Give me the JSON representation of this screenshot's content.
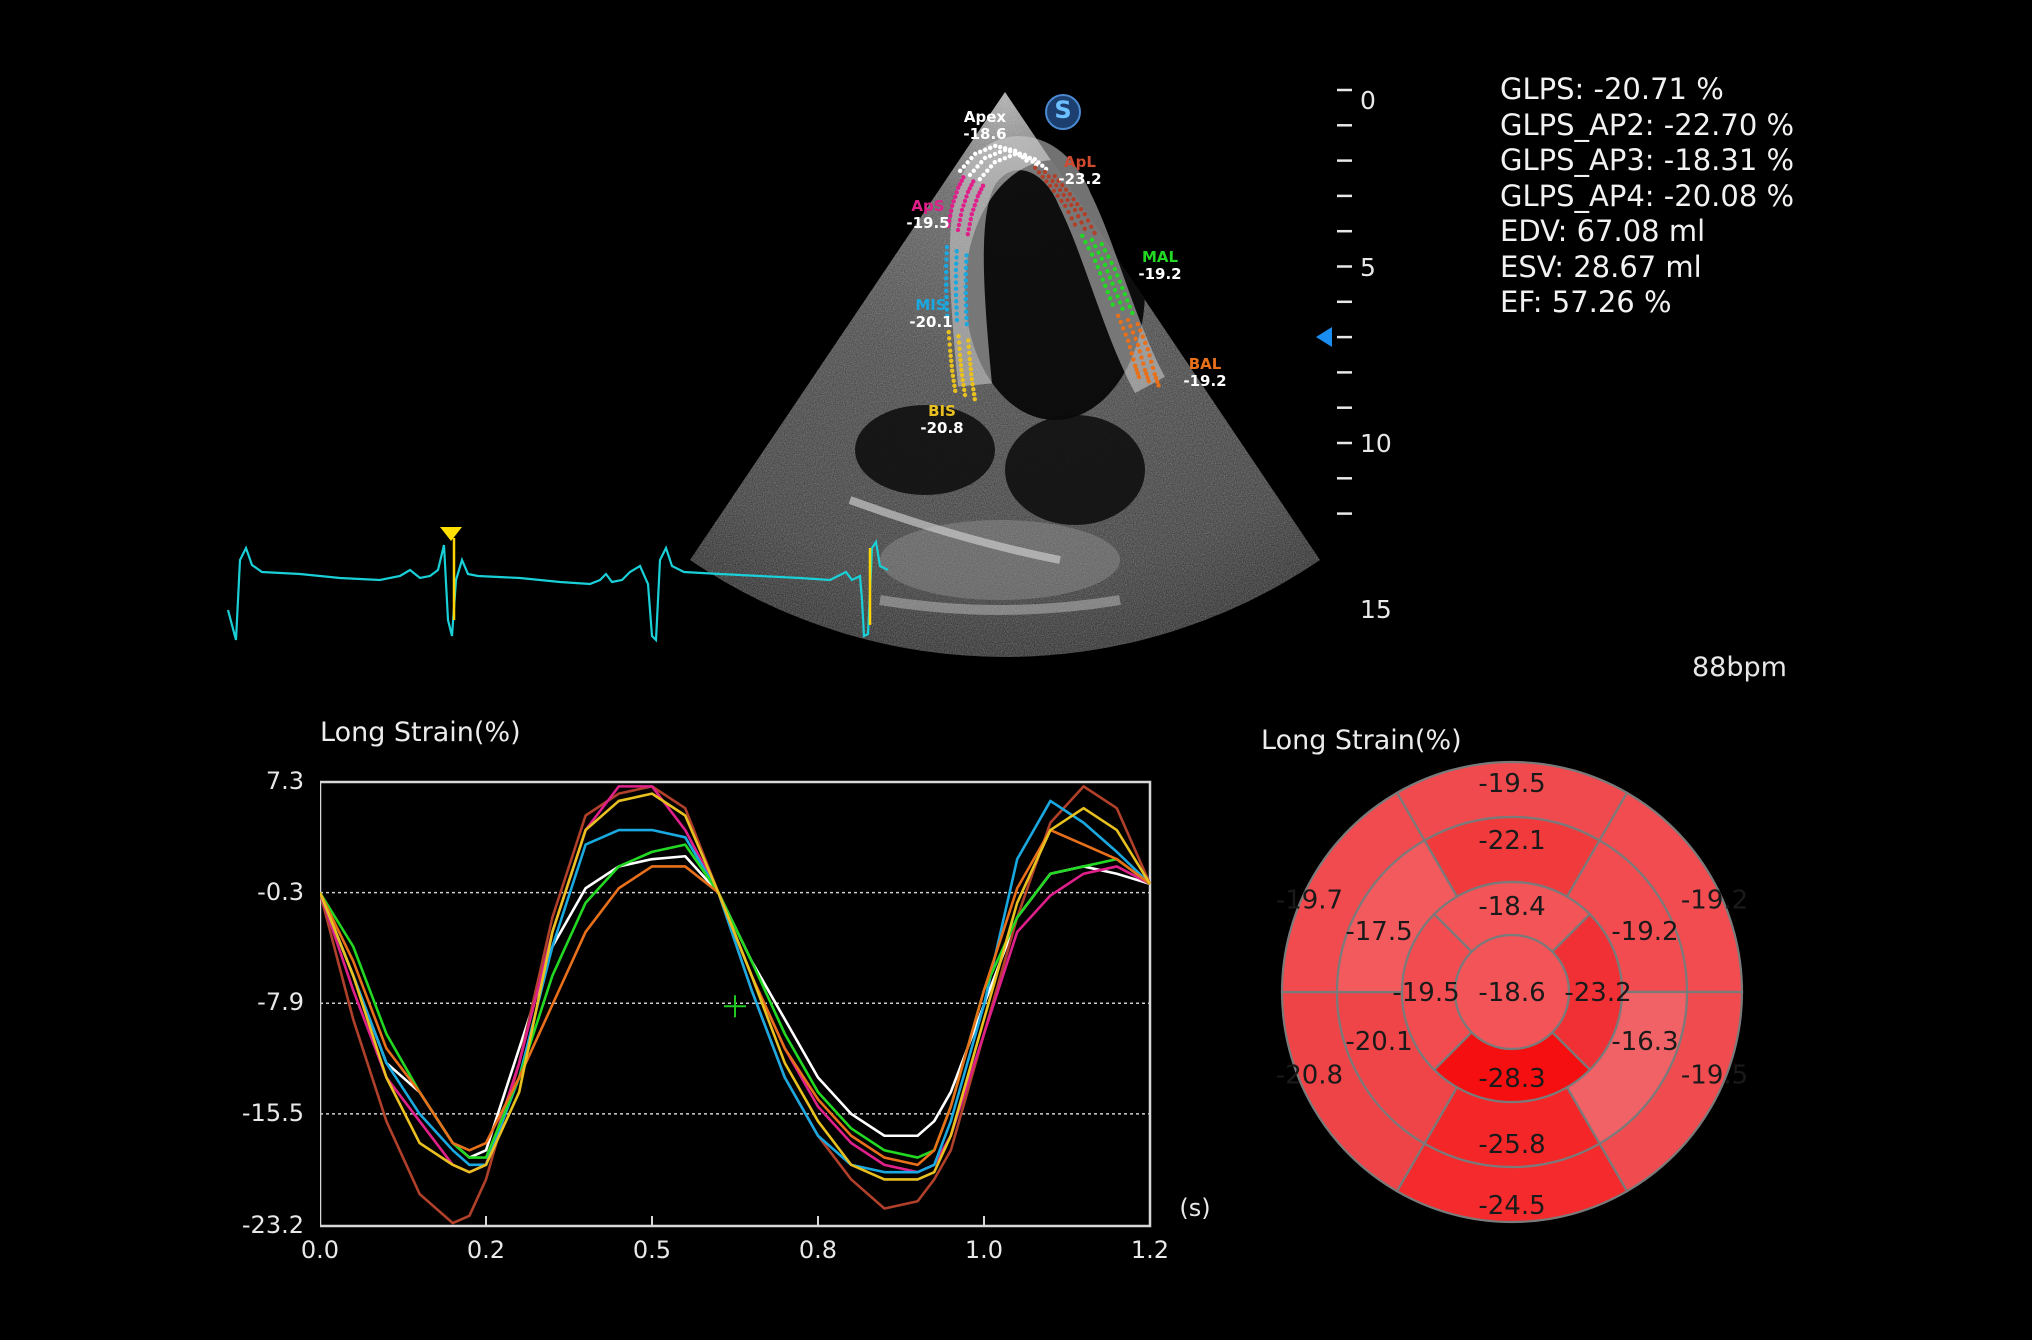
{
  "stats": [
    "GLPS: -20.71 %",
    "GLPS_AP2: -22.70 %",
    "GLPS_AP3: -18.31 %",
    "GLPS_AP4: -20.08 %",
    "EDV: 67.08 ml",
    "ESV: 28.67 ml",
    "EF: 57.26 %"
  ],
  "heart_rate": "88bpm",
  "depth_scale": {
    "labels": [
      "0",
      "5",
      "10",
      "15"
    ]
  },
  "icons": {
    "s_badge": "S",
    "frame_marker": "triangle-down-icon",
    "depth_marker": "triangle-left-icon"
  },
  "segments": [
    {
      "name": "Apex",
      "value": "-18.6",
      "color": "#ffffff"
    },
    {
      "name": "ApL",
      "value": "-23.2",
      "color": "#b0402a"
    },
    {
      "name": "ApS",
      "value": "-19.5",
      "color": "#e0208a"
    },
    {
      "name": "MAL",
      "value": "-19.2",
      "color": "#22d822"
    },
    {
      "name": "MIS",
      "value": "-20.1",
      "color": "#1aa8e0"
    },
    {
      "name": "BAL",
      "value": "-19.2",
      "color": "#e8701a"
    },
    {
      "name": "BIS",
      "value": "-20.8",
      "color": "#e8c020"
    }
  ],
  "strain_chart_title": "Long Strain(%)",
  "bullseye_title": "Long Strain(%)",
  "bullseye": {
    "outer": [
      "-19.5",
      "-19.2",
      "-19.5",
      "-24.5",
      "-20.8",
      "-19.7"
    ],
    "middle": [
      "-22.1",
      "-19.2",
      "-16.3",
      "-25.8",
      "-20.1",
      "-17.5"
    ],
    "inner": [
      "-18.4",
      "-23.2",
      "-28.3",
      "-19.5"
    ],
    "apex": "-18.6",
    "colors": {
      "outer": [
        "#f04a4e",
        "#f24c50",
        "#f04c50",
        "#f42a2c",
        "#ef4447",
        "#f14b4f"
      ],
      "middle": [
        "#f03a3c",
        "#f24c50",
        "#f06266",
        "#f42628",
        "#ef4448",
        "#f35a5e"
      ],
      "inner": [
        "#f35458",
        "#f03034",
        "#f50f10",
        "#f24c50"
      ],
      "apex": "#f35458"
    }
  },
  "chart_data": {
    "type": "line",
    "title": "Long Strain(%)",
    "xlabel": "(s)",
    "ylabel": "",
    "xlim": [
      0.0,
      1.25
    ],
    "ylim": [
      -23.2,
      7.3
    ],
    "yticks": [
      "7.3",
      "-0.3",
      "-7.9",
      "-15.5",
      "-23.2"
    ],
    "xticks": [
      "0.0",
      "0.2",
      "0.5",
      "0.8",
      "1.0",
      "1.2"
    ],
    "xtick_values": [
      0.0,
      0.25,
      0.5,
      0.75,
      1.0,
      1.25
    ],
    "gridlines": [
      -0.3,
      -7.9,
      -15.5
    ],
    "x": [
      0.0,
      0.05,
      0.1,
      0.15,
      0.2,
      0.225,
      0.25,
      0.3,
      0.35,
      0.4,
      0.45,
      0.5,
      0.55,
      0.6,
      0.65,
      0.7,
      0.75,
      0.8,
      0.85,
      0.9,
      0.925,
      0.95,
      1.0,
      1.05,
      1.1,
      1.15,
      1.2,
      1.25
    ],
    "series": [
      {
        "color": "#ffffff",
        "values": [
          -0.3,
          -6,
          -12,
          -14,
          -17.5,
          -18.5,
          -18.0,
          -11,
          -4,
          0,
          1.5,
          2.0,
          2.2,
          -0.3,
          -5,
          -9,
          -13,
          -15.5,
          -17.0,
          -17.0,
          -16.0,
          -14,
          -8,
          -2,
          1.0,
          1.5,
          1.0,
          0.3
        ]
      },
      {
        "color": "#b0402a",
        "values": [
          -0.3,
          -9,
          -16,
          -21,
          -23.0,
          -22.5,
          -20.0,
          -12,
          -2,
          5,
          6.5,
          7.0,
          5.5,
          -0.3,
          -7,
          -13,
          -17,
          -20,
          -22.0,
          -21.5,
          -20.0,
          -18,
          -10,
          -2,
          4.5,
          7.0,
          5.5,
          0.3
        ]
      },
      {
        "color": "#e0208a",
        "values": [
          -0.3,
          -7,
          -13,
          -16,
          -19.0,
          -19.5,
          -19.0,
          -12,
          -3,
          4,
          7.0,
          7.0,
          4.0,
          -0.3,
          -6,
          -11,
          -15,
          -17.5,
          -19.0,
          -19.5,
          -19.0,
          -17,
          -10,
          -3,
          -0.5,
          1.0,
          1.5,
          0.3
        ]
      },
      {
        "color": "#1aa8e0",
        "values": [
          -0.3,
          -6,
          -12,
          -15.5,
          -18.0,
          -19.0,
          -19.0,
          -13,
          -4,
          3.0,
          4.0,
          4.0,
          3.5,
          -0.3,
          -7,
          -13,
          -17,
          -19,
          -19.5,
          -19.5,
          -19.0,
          -16,
          -8,
          2,
          6,
          4.5,
          2.5,
          0.3
        ]
      },
      {
        "color": "#22d822",
        "values": [
          -0.3,
          -4,
          -10,
          -14,
          -17.5,
          -18.5,
          -18.5,
          -13,
          -6,
          -1,
          1.5,
          2.5,
          3.0,
          -0.3,
          -5,
          -10,
          -14,
          -16.5,
          -18.0,
          -18.5,
          -18.0,
          -15,
          -7,
          -2,
          1.0,
          1.5,
          2.0,
          0.3
        ]
      },
      {
        "color": "#e8701a",
        "values": [
          -0.3,
          -5,
          -11,
          -14,
          -17.5,
          -18.0,
          -17.5,
          -13,
          -8,
          -3,
          0,
          1.5,
          1.5,
          -0.3,
          -6,
          -11,
          -14.5,
          -17,
          -18.5,
          -19.0,
          -18.0,
          -15,
          -7,
          0,
          4,
          3,
          2,
          0.3
        ]
      },
      {
        "color": "#e8c020",
        "values": [
          -0.3,
          -6,
          -13,
          -17.5,
          -19.0,
          -19.5,
          -19.0,
          -14,
          -3,
          4,
          6.0,
          6.5,
          5.0,
          -0.3,
          -6,
          -12,
          -16,
          -19,
          -20.0,
          -20.0,
          -19.5,
          -17,
          -9,
          -1,
          4,
          5.5,
          4.0,
          0.3
        ]
      }
    ]
  }
}
